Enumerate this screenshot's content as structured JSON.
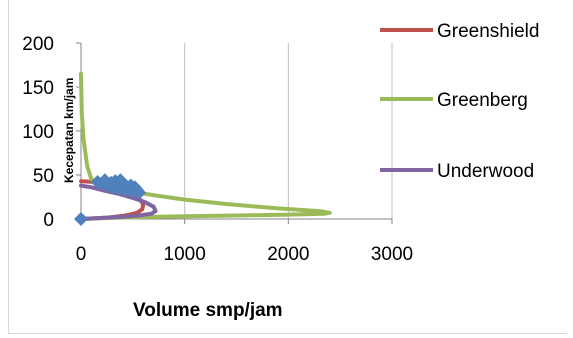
{
  "chart_data": {
    "type": "line",
    "xlabel": "Volume smp/jam",
    "ylabel": "Kecepatan km/jam",
    "xlim": [
      0,
      3000
    ],
    "ylim": [
      0,
      200
    ],
    "x_ticks": [
      "0",
      "1000",
      "2000",
      "3000"
    ],
    "y_ticks": [
      "0",
      "50",
      "100",
      "150",
      "200"
    ],
    "grid": "vertical",
    "legend_position": "right",
    "series": [
      {
        "name": "Greenshield",
        "color": "#c0504d",
        "points": [
          [
            0,
            43
          ],
          [
            150,
            42
          ],
          [
            300,
            38
          ],
          [
            420,
            33
          ],
          [
            520,
            27
          ],
          [
            580,
            21
          ],
          [
            600,
            16
          ],
          [
            590,
            11
          ],
          [
            540,
            7
          ],
          [
            430,
            4
          ],
          [
            250,
            1.5
          ],
          [
            0,
            0
          ]
        ]
      },
      {
        "name": "Greenberg",
        "color": "#9bbb59",
        "points": [
          [
            0,
            165
          ],
          [
            8,
            120
          ],
          [
            25,
            90
          ],
          [
            60,
            60
          ],
          [
            100,
            45
          ],
          [
            200,
            38
          ],
          [
            400,
            33
          ],
          [
            700,
            27
          ],
          [
            1000,
            22
          ],
          [
            1400,
            17
          ],
          [
            1900,
            12
          ],
          [
            2300,
            9
          ],
          [
            2400,
            7
          ],
          [
            2350,
            6
          ],
          [
            2000,
            5
          ],
          [
            1500,
            4
          ],
          [
            1000,
            3.2
          ],
          [
            500,
            2
          ],
          [
            0,
            0
          ]
        ]
      },
      {
        "name": "Underwood",
        "color": "#8064a2",
        "points": [
          [
            0,
            38
          ],
          [
            100,
            36
          ],
          [
            200,
            33
          ],
          [
            350,
            29
          ],
          [
            500,
            24
          ],
          [
            620,
            19
          ],
          [
            700,
            14
          ],
          [
            720,
            9
          ],
          [
            680,
            6
          ],
          [
            560,
            4
          ],
          [
            400,
            2.5
          ],
          [
            200,
            1.2
          ],
          [
            0,
            0
          ]
        ]
      },
      {
        "name": "",
        "color": "#4f81bd",
        "marker": "diamond",
        "points": [
          [
            0,
            0
          ],
          [
            160,
            42
          ],
          [
            200,
            40
          ],
          [
            230,
            44
          ],
          [
            260,
            38
          ],
          [
            290,
            41
          ],
          [
            310,
            36
          ],
          [
            330,
            43
          ],
          [
            350,
            40
          ],
          [
            360,
            35
          ],
          [
            380,
            44
          ],
          [
            400,
            39
          ],
          [
            420,
            33
          ],
          [
            440,
            37
          ],
          [
            460,
            34
          ],
          [
            480,
            38
          ],
          [
            500,
            32
          ],
          [
            520,
            36
          ],
          [
            540,
            33
          ],
          [
            560,
            30
          ]
        ]
      }
    ]
  }
}
